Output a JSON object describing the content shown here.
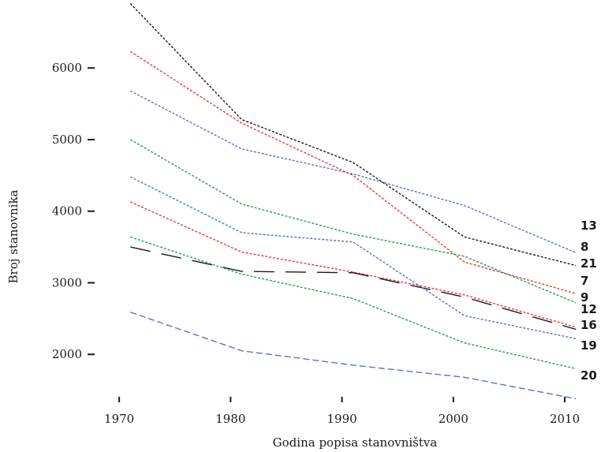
{
  "chart_data": {
    "type": "line",
    "title": "",
    "xlabel": "Godina popisa stanovništva",
    "ylabel": "Broj stanovnika",
    "x": [
      1971,
      1981,
      1991,
      2001,
      2011
    ],
    "xticks": [
      1970,
      1980,
      1990,
      2000,
      2010
    ],
    "xtick_labels": [
      "1970",
      "1980",
      "1990",
      "2000",
      "2010"
    ],
    "yticks": [
      2000,
      3000,
      4000,
      5000,
      6000
    ],
    "ytick_labels": [
      "2000",
      "3000",
      "4000",
      "5000",
      "6000"
    ],
    "xlim": [
      1967.3,
      2012.9
    ],
    "ylim": [
      1000,
      6950
    ],
    "grid": false,
    "legend": "labels at line ends (right)",
    "series": [
      {
        "label": "13",
        "color": "#5a72c8",
        "dash": "3 2",
        "values": [
          5680,
          4870,
          4520,
          4080,
          3420
        ]
      },
      {
        "label": "8",
        "color": "#1a1a1a",
        "dash": "3 2",
        "values": [
          6900,
          5280,
          4680,
          3640,
          3240
        ]
      },
      {
        "label": "21",
        "color": "#e8393a",
        "dash": "3 2",
        "values": [
          6230,
          5230,
          4500,
          3290,
          2850
        ]
      },
      {
        "label": "7",
        "color": "#2e9a52",
        "dash": "3 2",
        "values": [
          5000,
          4100,
          3680,
          3370,
          2720
        ]
      },
      {
        "label": "9",
        "color": "#e8393a",
        "dash": "3 2",
        "values": [
          4130,
          3430,
          3150,
          2830,
          2380
        ]
      },
      {
        "label": "12",
        "color": "#1a1a1a",
        "dash": "26 14",
        "values": [
          3500,
          3160,
          3140,
          2800,
          2350
        ]
      },
      {
        "label": "16",
        "color": "#5a72c8",
        "dash": "3 2",
        "values": [
          4480,
          3700,
          3570,
          2540,
          2220
        ]
      },
      {
        "label": "19",
        "color": "#2e9a52",
        "dash": "3 2",
        "values": [
          3640,
          3120,
          2780,
          2160,
          1800
        ]
      },
      {
        "label": "20",
        "color": "#5a72c8",
        "dash": "8 4",
        "values": [
          2590,
          2050,
          1850,
          1680,
          1380
        ]
      }
    ]
  }
}
